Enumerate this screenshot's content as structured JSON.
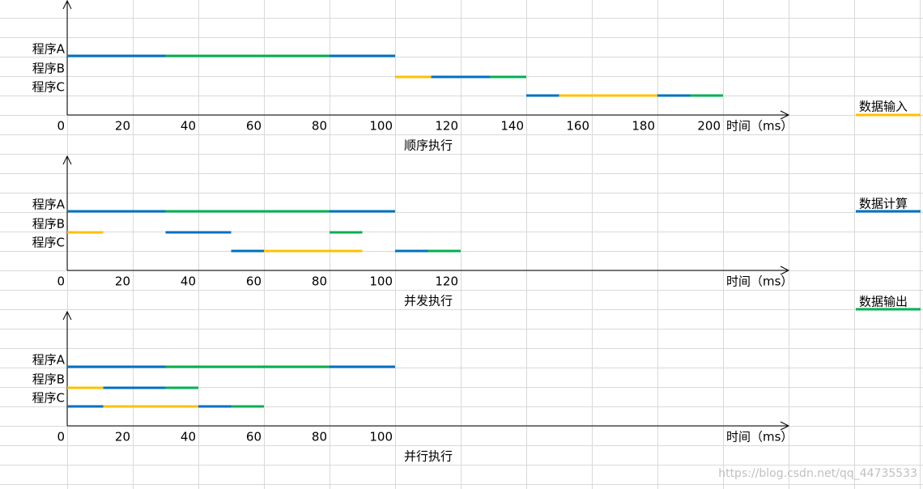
{
  "chart_data": [
    {
      "type": "timeline",
      "title": "顺序执行",
      "x_label": "时间（ms）",
      "xlim": [
        0,
        220
      ],
      "xticks": [
        0,
        20,
        40,
        60,
        80,
        100,
        120,
        140,
        160,
        180,
        200
      ],
      "rows": [
        {
          "label": "程序A",
          "segments": [
            {
              "start": 0,
              "end": 30,
              "color": "#0070c0"
            },
            {
              "start": 30,
              "end": 80,
              "color": "#00b050"
            },
            {
              "start": 80,
              "end": 100,
              "color": "#0070c0"
            }
          ]
        },
        {
          "label": "程序B",
          "segments": [
            {
              "start": 100,
              "end": 111,
              "color": "#ffc000"
            },
            {
              "start": 111,
              "end": 129,
              "color": "#0070c0"
            },
            {
              "start": 129,
              "end": 140,
              "color": "#00b050"
            }
          ]
        },
        {
          "label": "程序C",
          "segments": [
            {
              "start": 140,
              "end": 150,
              "color": "#0070c0"
            },
            {
              "start": 150,
              "end": 180,
              "color": "#ffc000"
            },
            {
              "start": 180,
              "end": 190,
              "color": "#0070c0"
            },
            {
              "start": 190,
              "end": 200,
              "color": "#00b050"
            }
          ]
        }
      ]
    },
    {
      "type": "timeline",
      "title": "并发执行",
      "x_label": "时间（ms）",
      "xlim": [
        0,
        220
      ],
      "xticks": [
        0,
        20,
        40,
        60,
        80,
        100,
        120
      ],
      "rows": [
        {
          "label": "程序A",
          "segments": [
            {
              "start": 0,
              "end": 30,
              "color": "#0070c0"
            },
            {
              "start": 30,
              "end": 80,
              "color": "#00b050"
            },
            {
              "start": 80,
              "end": 100,
              "color": "#0070c0"
            }
          ]
        },
        {
          "label": "程序B",
          "segments": [
            {
              "start": 0,
              "end": 11,
              "color": "#ffc000"
            },
            {
              "start": 30,
              "end": 50,
              "color": "#0070c0"
            },
            {
              "start": 80,
              "end": 90,
              "color": "#00b050"
            }
          ]
        },
        {
          "label": "程序C",
          "segments": [
            {
              "start": 50,
              "end": 60,
              "color": "#0070c0"
            },
            {
              "start": 60,
              "end": 90,
              "color": "#ffc000"
            },
            {
              "start": 100,
              "end": 110,
              "color": "#0070c0"
            },
            {
              "start": 110,
              "end": 120,
              "color": "#00b050"
            }
          ]
        }
      ]
    },
    {
      "type": "timeline",
      "title": "并行执行",
      "x_label": "时间（ms）",
      "xlim": [
        0,
        220
      ],
      "xticks": [
        0,
        20,
        40,
        60,
        80,
        100
      ],
      "rows": [
        {
          "label": "程序A",
          "segments": [
            {
              "start": 0,
              "end": 30,
              "color": "#0070c0"
            },
            {
              "start": 30,
              "end": 80,
              "color": "#00b050"
            },
            {
              "start": 80,
              "end": 100,
              "color": "#0070c0"
            }
          ]
        },
        {
          "label": "程序B",
          "segments": [
            {
              "start": 0,
              "end": 11,
              "color": "#ffc000"
            },
            {
              "start": 11,
              "end": 30,
              "color": "#0070c0"
            },
            {
              "start": 30,
              "end": 40,
              "color": "#00b050"
            }
          ]
        },
        {
          "label": "程序C",
          "segments": [
            {
              "start": 0,
              "end": 11,
              "color": "#0070c0"
            },
            {
              "start": 11,
              "end": 40,
              "color": "#ffc000"
            },
            {
              "start": 40,
              "end": 50,
              "color": "#0070c0"
            },
            {
              "start": 50,
              "end": 60,
              "color": "#00b050"
            }
          ]
        }
      ]
    }
  ],
  "legend": [
    {
      "name": "数据输入",
      "color": "#ffc000"
    },
    {
      "name": "数据计算",
      "color": "#0070c0"
    },
    {
      "name": "数据输出",
      "color": "#00b050"
    }
  ],
  "watermark": "https://blog.csdn.net/qq_44735533"
}
